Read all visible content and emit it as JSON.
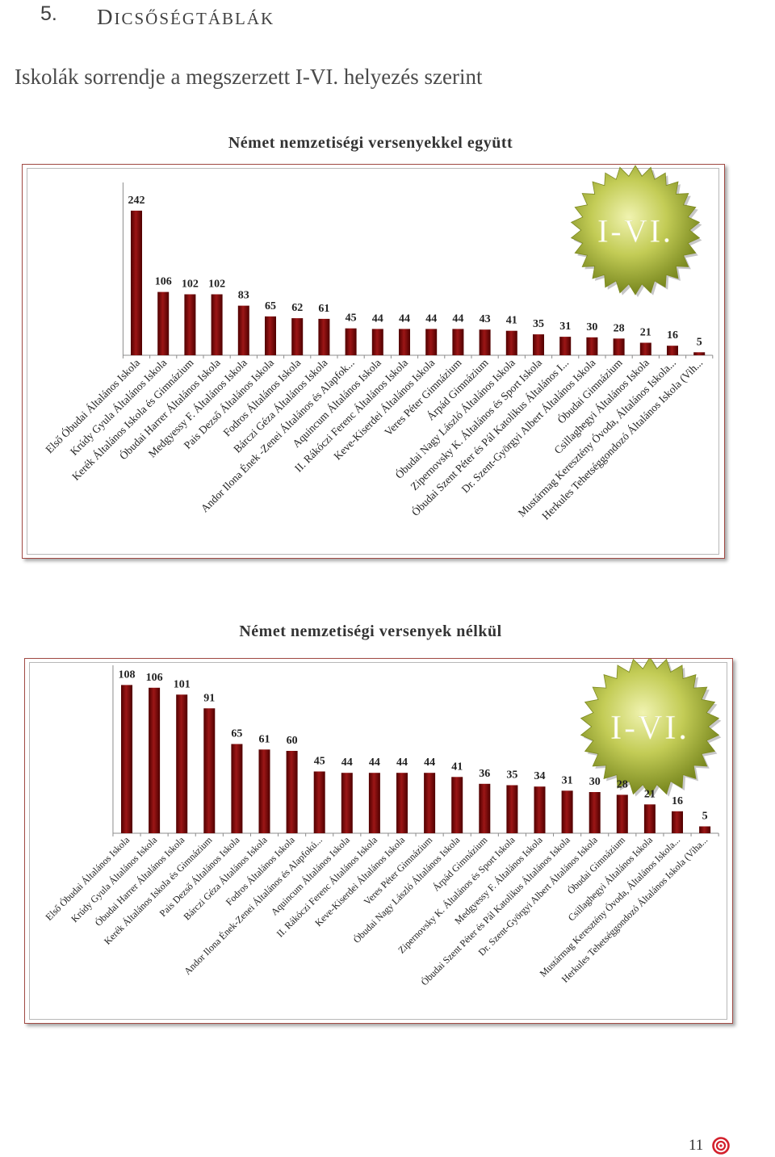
{
  "header": {
    "number": "5.",
    "title": "DICSŐSÉGTÁBLÁK"
  },
  "subtitle": "Iskolák sorrendje a megszerzett I-VI. helyezés szerint",
  "colors": {
    "bar_dark": "#4f0000",
    "bar_light": "#9c1616",
    "badge_center": "#f0f3b0",
    "badge_mid": "#c3cc56",
    "badge_edge": "#6a7a14",
    "badge_text": "#ffffff",
    "frame_border": "#a14a44",
    "page_icon": "#d3202c"
  },
  "chart_data": [
    {
      "type": "bar",
      "title": "Német nemzetiségi versenyekkel együtt",
      "badge_text": "I-VI.",
      "grid": false,
      "legend": "none",
      "categories": [
        "Első Óbudai Általános Iskola",
        "Krúdy Gyula Általános Iskola",
        "Kerék Általános Iskola és Gimnázium",
        "Óbudai Harrer Általános Iskola",
        "Medgyessy F. Általános Iskola",
        "Pais Dezső Általános Iskola",
        "Fodros Általános Iskola",
        "Bárczi Géza Általános Iskola",
        "Andor Ilona Ének -Zenei Általános és Alapfok...",
        "Aquincum Általános Iskola",
        "II. Rákóczi Ferenc Általános Iskola",
        "Keve-Kiserdei Általános Iskola",
        "Veres Péter Gimnázium",
        "Árpád Gimnázium",
        "Óbudai Nagy László Általános Iskola",
        "Zipernovsky K. Általános és Sport Iskola",
        "Óbudai Szent Péter és Pál Katolikus Általános I...",
        "Dr. Szent-Györgyi Albert Általános Iskola",
        "Óbudai Gimnázium",
        "Csillaghegyi Általános Iskola",
        "Mustármag Keresztény Óvoda, Általános Iskola...",
        "Herkules Tehetséggondozó Általános Iskola (Vih..."
      ],
      "values": [
        242,
        106,
        102,
        102,
        83,
        65,
        62,
        61,
        45,
        44,
        44,
        44,
        44,
        43,
        41,
        35,
        31,
        30,
        28,
        21,
        16,
        5
      ]
    },
    {
      "type": "bar",
      "title": "Német nemzetiségi versenyek nélkül",
      "badge_text": "I-VI.",
      "grid": false,
      "legend": "none",
      "categories": [
        "Első Óbudai Általános Iskola",
        "Krúdy Gyula Általános Iskola",
        "Óbudai Harrer Általános Iskola",
        "Kerék Általános Iskola és Gimnázium",
        "Pais Dezső Általános Iskola",
        "Bárczi Géza Általános Iskola",
        "Fodros Általános Iskola",
        "Andor Ilona Ének-Zenei Általános és Alapfokú...",
        "Aquincum Általános Iskola",
        "II. Rákóczi Ferenc Általános Iskola",
        "Keve-Kiserdei Általános Iskola",
        "Veres Péter Gimnázium",
        "Óbudai Nagy László Általános Iskola",
        "Árpád Gimnázium",
        "Zipernovsky K. Általános és Sport Iskola",
        "Medgyessy F. Általános Iskola",
        "Óbudai Szent Péter és Pál Katolikus Általános Iskola",
        "Dr. Szent-Györgyi Albert Általános Iskola",
        "Óbudai Gimnázium",
        "Csillaghegyi Általános Iskola",
        "Mustármag Keresztény Óvoda, Általános Iskola...",
        "Herkules Tehetséggondozó Általános Iskola (Viha..."
      ],
      "values": [
        108,
        106,
        101,
        91,
        65,
        61,
        60,
        45,
        44,
        44,
        44,
        44,
        41,
        36,
        35,
        34,
        31,
        30,
        28,
        21,
        16,
        5
      ]
    }
  ],
  "footer": {
    "page_number": "11",
    "icon": "target-icon"
  }
}
